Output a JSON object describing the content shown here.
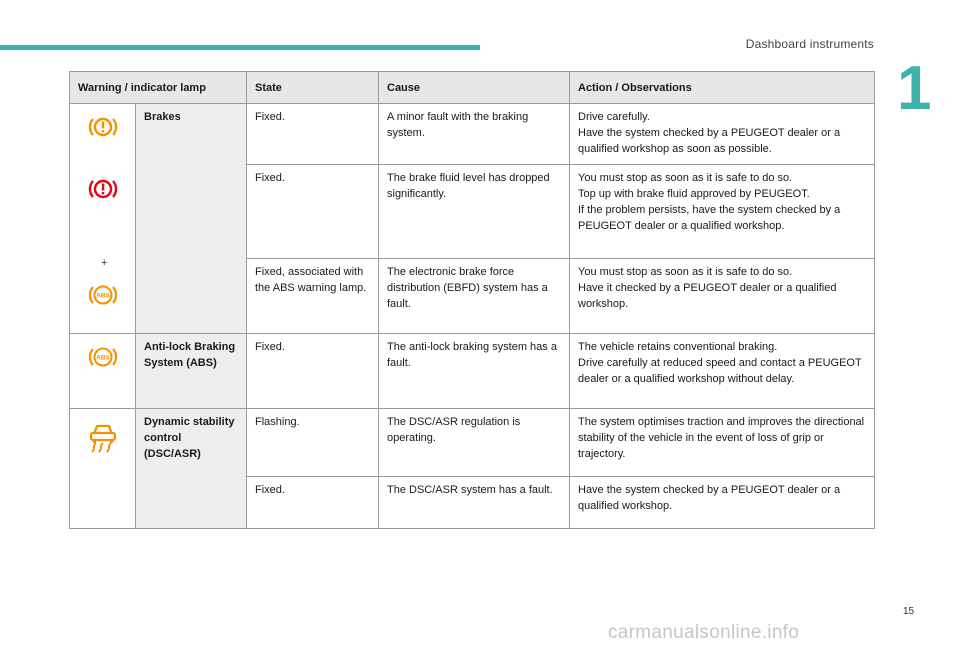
{
  "header": {
    "section_title": "Dashboard instruments",
    "chapter_number": "1",
    "page_number": "15"
  },
  "table": {
    "columns": [
      "Warning / indicator lamp",
      "State",
      "Cause",
      "Action / Observations"
    ],
    "groups": [
      {
        "name": "Brakes",
        "separator": "+",
        "rows": [
          {
            "state": "Fixed.",
            "cause": "A minor fault with the braking system.",
            "action": [
              "Drive carefully.",
              "Have the system checked by a PEUGEOT dealer or a qualified workshop as soon as possible."
            ]
          },
          {
            "state": "Fixed.",
            "cause": "The brake fluid level has dropped significantly.",
            "action": [
              "You must stop as soon as it is safe to do so.",
              "Top up with brake fluid approved by PEUGEOT.",
              "If the problem persists, have the system checked by a PEUGEOT dealer or a qualified workshop."
            ]
          },
          {
            "state": "Fixed, associated with the ABS warning lamp.",
            "cause": "The electronic brake force distribution (EBFD) system has a fault.",
            "action": [
              "You must stop as soon as it is safe to do so.",
              "Have it checked by a PEUGEOT dealer or a qualified workshop."
            ]
          }
        ]
      },
      {
        "name": "Anti-lock Braking System (ABS)",
        "rows": [
          {
            "state": "Fixed.",
            "cause": "The anti-lock braking system has a fault.",
            "action": [
              "The vehicle retains conventional braking.",
              "Drive carefully at reduced speed and contact a PEUGEOT dealer or a qualified workshop without delay."
            ]
          }
        ]
      },
      {
        "name": "Dynamic stability control (DSC/ASR)",
        "rows": [
          {
            "state": "Flashing.",
            "cause": "The DSC/ASR regulation is operating.",
            "action": [
              "The system optimises traction and improves the directional stability of the vehicle in the event of loss of grip or trajectory."
            ]
          },
          {
            "state": "Fixed.",
            "cause": "The DSC/ASR system has a fault.",
            "action": [
              "Have the system checked by a PEUGEOT dealer or a qualified workshop."
            ]
          }
        ]
      }
    ]
  },
  "icons": {
    "brake_amber": "brake-warning-amber-icon",
    "brake_red": "brake-warning-red-icon",
    "abs": "abs-icon",
    "dsc": "dsc-asr-icon"
  },
  "colors": {
    "amber": "#f39200",
    "red": "#e30613",
    "accent": "#3fb3ab"
  },
  "watermark": "carmanualsonline.info"
}
